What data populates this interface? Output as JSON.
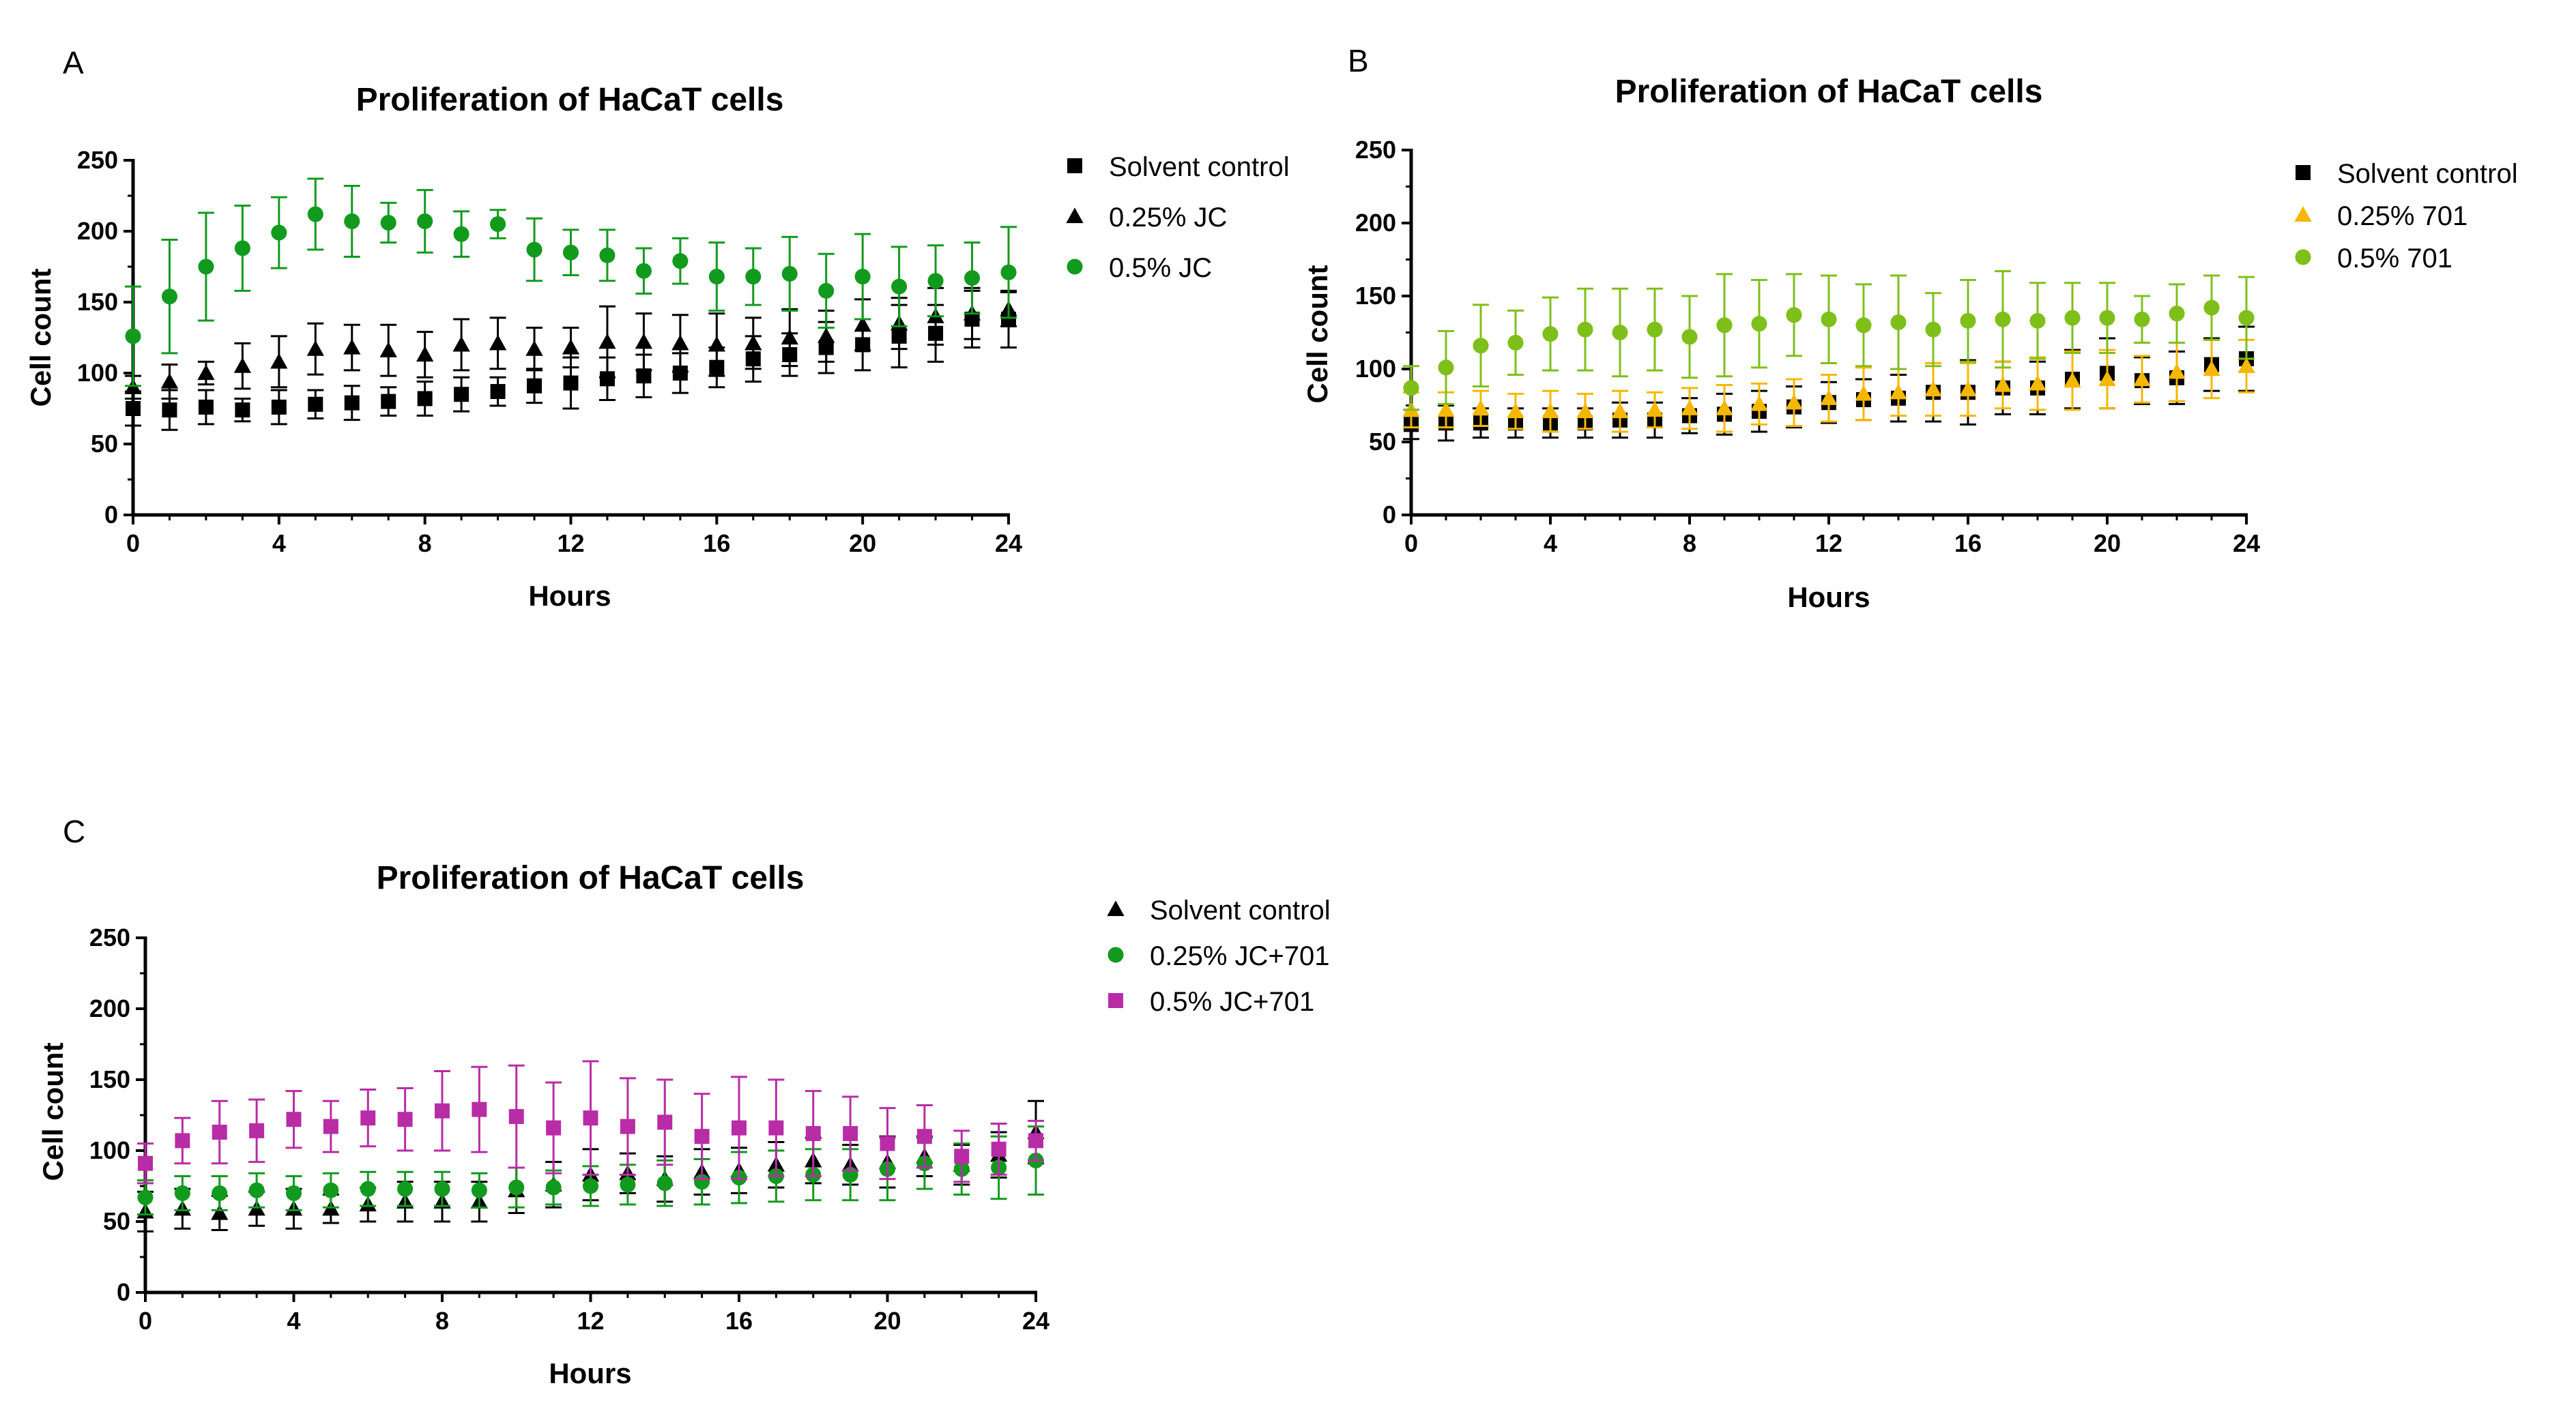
{
  "chart_data": [
    {
      "panel": "A",
      "type": "scatter",
      "title": "Proliferation of HaCaT cells",
      "xlabel": "Hours",
      "ylabel": "Cell count",
      "xlim": [
        0,
        24
      ],
      "ylim": [
        0,
        250
      ],
      "xticks": [
        0,
        4,
        8,
        12,
        16,
        20,
        24
      ],
      "yticks": [
        0,
        50,
        100,
        150,
        200,
        250
      ],
      "grid": false,
      "legend_position": "right",
      "x": [
        0,
        1,
        2,
        3,
        4,
        5,
        6,
        7,
        8,
        9,
        10,
        11,
        12,
        13,
        14,
        15,
        16,
        17,
        18,
        19,
        20,
        21,
        22,
        23,
        24
      ],
      "series": [
        {
          "name": "Solvent control",
          "marker": "square",
          "color": "#000000",
          "values": [
            75,
            74,
            76,
            74,
            76,
            78,
            79,
            80,
            82,
            85,
            87,
            91,
            93,
            96,
            98,
            100,
            104,
            110,
            113,
            118,
            120,
            126,
            128,
            138,
            138
          ],
          "errors": [
            12,
            14,
            12,
            8,
            12,
            10,
            12,
            10,
            12,
            12,
            10,
            12,
            18,
            15,
            15,
            14,
            14,
            16,
            15,
            18,
            18,
            22,
            20,
            20,
            20
          ]
        },
        {
          "name": "0.25% JC",
          "marker": "triangle",
          "color": "#000000",
          "values": [
            90,
            94,
            100,
            105,
            108,
            117,
            118,
            116,
            113,
            120,
            121,
            117,
            118,
            122,
            122,
            121,
            120,
            121,
            125,
            126,
            134,
            135,
            140,
            142,
            145
          ],
          "errors": [
            8,
            12,
            8,
            16,
            18,
            18,
            16,
            18,
            16,
            18,
            18,
            15,
            14,
            25,
            20,
            20,
            22,
            18,
            20,
            18,
            18,
            18,
            20,
            18,
            12
          ]
        },
        {
          "name": "0.5% JC",
          "marker": "circle",
          "color": "#129A1E",
          "values": [
            126,
            154,
            175,
            188,
            199,
            212,
            207,
            206,
            207,
            198,
            205,
            187,
            185,
            183,
            172,
            179,
            168,
            168,
            170,
            158,
            168,
            161,
            165,
            167,
            171
          ],
          "errors": [
            35,
            40,
            38,
            30,
            25,
            25,
            25,
            14,
            22,
            16,
            10,
            22,
            16,
            18,
            16,
            16,
            24,
            20,
            26,
            26,
            30,
            28,
            25,
            25,
            32
          ]
        }
      ]
    },
    {
      "panel": "B",
      "type": "scatter",
      "title": "Proliferation of HaCaT cells",
      "xlabel": "Hours",
      "ylabel": "Cell count",
      "xlim": [
        0,
        24
      ],
      "ylim": [
        0,
        250
      ],
      "xticks": [
        0,
        4,
        8,
        12,
        16,
        20,
        24
      ],
      "yticks": [
        0,
        50,
        100,
        150,
        200,
        250
      ],
      "grid": false,
      "legend_position": "right",
      "x": [
        0,
        1,
        2,
        3,
        4,
        5,
        6,
        7,
        8,
        9,
        10,
        11,
        12,
        13,
        14,
        15,
        16,
        17,
        18,
        19,
        20,
        21,
        22,
        23,
        24
      ],
      "series": [
        {
          "name": "Solvent control",
          "marker": "square",
          "color": "#000000",
          "values": [
            62,
            63,
            63,
            63,
            63,
            63,
            65,
            65,
            68,
            69,
            71,
            74,
            77,
            79,
            80,
            84,
            84,
            87,
            87,
            93,
            97,
            92,
            94,
            103,
            107
          ],
          "errors": [
            10,
            12,
            10,
            10,
            10,
            10,
            12,
            12,
            12,
            14,
            14,
            14,
            14,
            14,
            16,
            20,
            22,
            18,
            18,
            20,
            24,
            16,
            18,
            18,
            22
          ]
        },
        {
          "name": "0.25% 701",
          "marker": "triangle",
          "color": "#F5B700",
          "values": [
            72,
            72,
            73,
            71,
            71,
            71,
            71,
            72,
            73,
            73,
            76,
            77,
            80,
            83,
            84,
            86,
            86,
            89,
            90,
            92,
            93,
            93,
            98,
            100,
            102
          ],
          "errors": [
            12,
            12,
            12,
            12,
            14,
            12,
            14,
            12,
            14,
            16,
            14,
            16,
            16,
            18,
            16,
            18,
            18,
            16,
            18,
            20,
            20,
            16,
            20,
            20,
            18
          ]
        },
        {
          "name": "0.5% 701",
          "marker": "circle",
          "color": "#7FBF1A",
          "values": [
            87,
            101,
            116,
            118,
            124,
            127,
            125,
            127,
            122,
            130,
            131,
            137,
            134,
            130,
            132,
            127,
            133,
            134,
            133,
            135,
            135,
            134,
            138,
            142,
            135
          ],
          "errors": [
            15,
            25,
            28,
            22,
            25,
            28,
            30,
            28,
            28,
            35,
            30,
            28,
            30,
            28,
            32,
            25,
            28,
            33,
            26,
            24,
            24,
            16,
            20,
            22,
            28
          ]
        }
      ]
    },
    {
      "panel": "C",
      "type": "scatter",
      "title": "Proliferation of HaCaT cells",
      "xlabel": "Hours",
      "ylabel": "Cell count",
      "xlim": [
        0,
        24
      ],
      "ylim": [
        0,
        250
      ],
      "xticks": [
        0,
        4,
        8,
        12,
        16,
        20,
        24
      ],
      "yticks": [
        0,
        50,
        100,
        150,
        200,
        250
      ],
      "grid": false,
      "legend_position": "right",
      "x": [
        0,
        1,
        2,
        3,
        4,
        5,
        6,
        7,
        8,
        9,
        10,
        11,
        12,
        13,
        14,
        15,
        16,
        17,
        18,
        19,
        20,
        21,
        22,
        23,
        24
      ],
      "series": [
        {
          "name": "Solvent control",
          "marker": "triangle",
          "color": "#000000",
          "values": [
            57,
            59,
            56,
            59,
            59,
            59,
            62,
            64,
            64,
            64,
            72,
            76,
            83,
            84,
            80,
            85,
            86,
            90,
            93,
            90,
            92,
            96,
            90,
            97,
            113
          ],
          "errors": [
            14,
            14,
            12,
            12,
            14,
            10,
            12,
            14,
            14,
            14,
            16,
            16,
            18,
            14,
            16,
            16,
            16,
            16,
            16,
            14,
            18,
            14,
            14,
            16,
            22
          ]
        },
        {
          "name": "0.25% JC+701",
          "marker": "circle",
          "color": "#129A1E",
          "values": [
            67,
            70,
            70,
            72,
            70,
            72,
            73,
            73,
            73,
            72,
            74,
            74,
            75,
            76,
            77,
            78,
            81,
            82,
            83,
            83,
            87,
            91,
            87,
            88,
            93
          ],
          "errors": [
            12,
            12,
            12,
            12,
            12,
            12,
            12,
            12,
            12,
            12,
            14,
            12,
            14,
            14,
            16,
            16,
            18,
            18,
            18,
            18,
            22,
            18,
            18,
            22,
            24
          ]
        },
        {
          "name": "0.5% JC+701",
          "marker": "square",
          "color": "#B82CA6",
          "values": [
            91,
            107,
            113,
            114,
            122,
            117,
            123,
            122,
            128,
            129,
            124,
            116,
            123,
            117,
            120,
            110,
            116,
            116,
            112,
            112,
            105,
            110,
            96,
            101,
            107
          ],
          "errors": [
            14,
            16,
            22,
            22,
            20,
            18,
            20,
            22,
            28,
            30,
            36,
            32,
            40,
            34,
            30,
            30,
            36,
            34,
            30,
            26,
            25,
            22,
            18,
            18,
            14
          ]
        }
      ]
    }
  ]
}
